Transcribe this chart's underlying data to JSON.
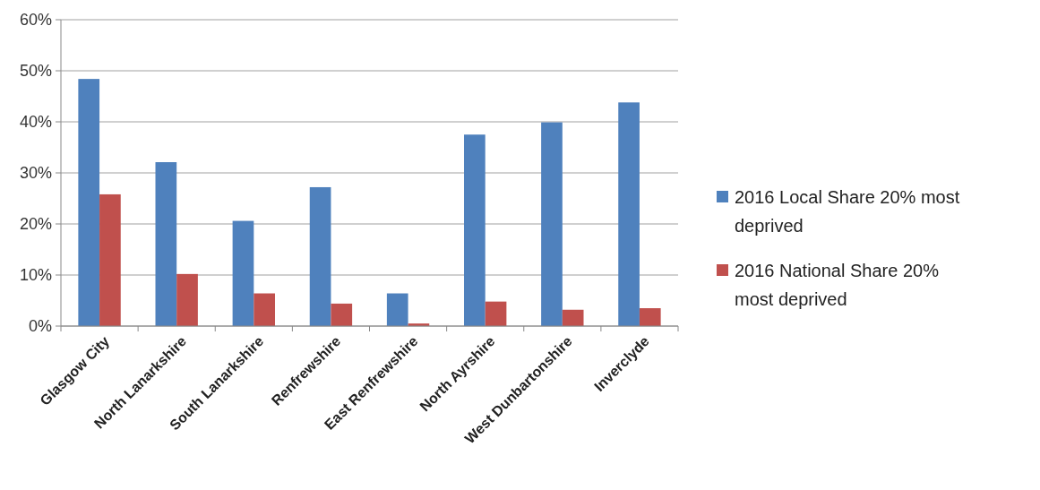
{
  "chart_data": {
    "type": "bar",
    "categories": [
      "Glasgow City",
      "North Lanarkshire",
      "South Lanarkshire",
      "Renfrewshire",
      "East Renfrewshire",
      "North Ayrshire",
      "West Dunbartonshire",
      "Inverclyde"
    ],
    "series": [
      {
        "name": "2016 Local Share 20% most deprived",
        "color": "#4f81bd",
        "values": [
          48.4,
          32.1,
          20.6,
          27.2,
          6.4,
          37.5,
          39.9,
          43.8
        ]
      },
      {
        "name": "2016 National Share 20% most deprived",
        "color": "#c0504d",
        "values": [
          25.8,
          10.2,
          6.4,
          4.4,
          0.5,
          4.8,
          3.2,
          3.5
        ]
      }
    ],
    "ylim": [
      0,
      60
    ],
    "yticks": [
      {
        "value": 0,
        "label": "0%"
      },
      {
        "value": 10,
        "label": "10%"
      },
      {
        "value": 20,
        "label": "20%"
      },
      {
        "value": 30,
        "label": "30%"
      },
      {
        "value": 40,
        "label": "40%"
      },
      {
        "value": 50,
        "label": "50%"
      },
      {
        "value": 60,
        "label": "60%"
      }
    ],
    "grid": "y",
    "legend": "right"
  }
}
